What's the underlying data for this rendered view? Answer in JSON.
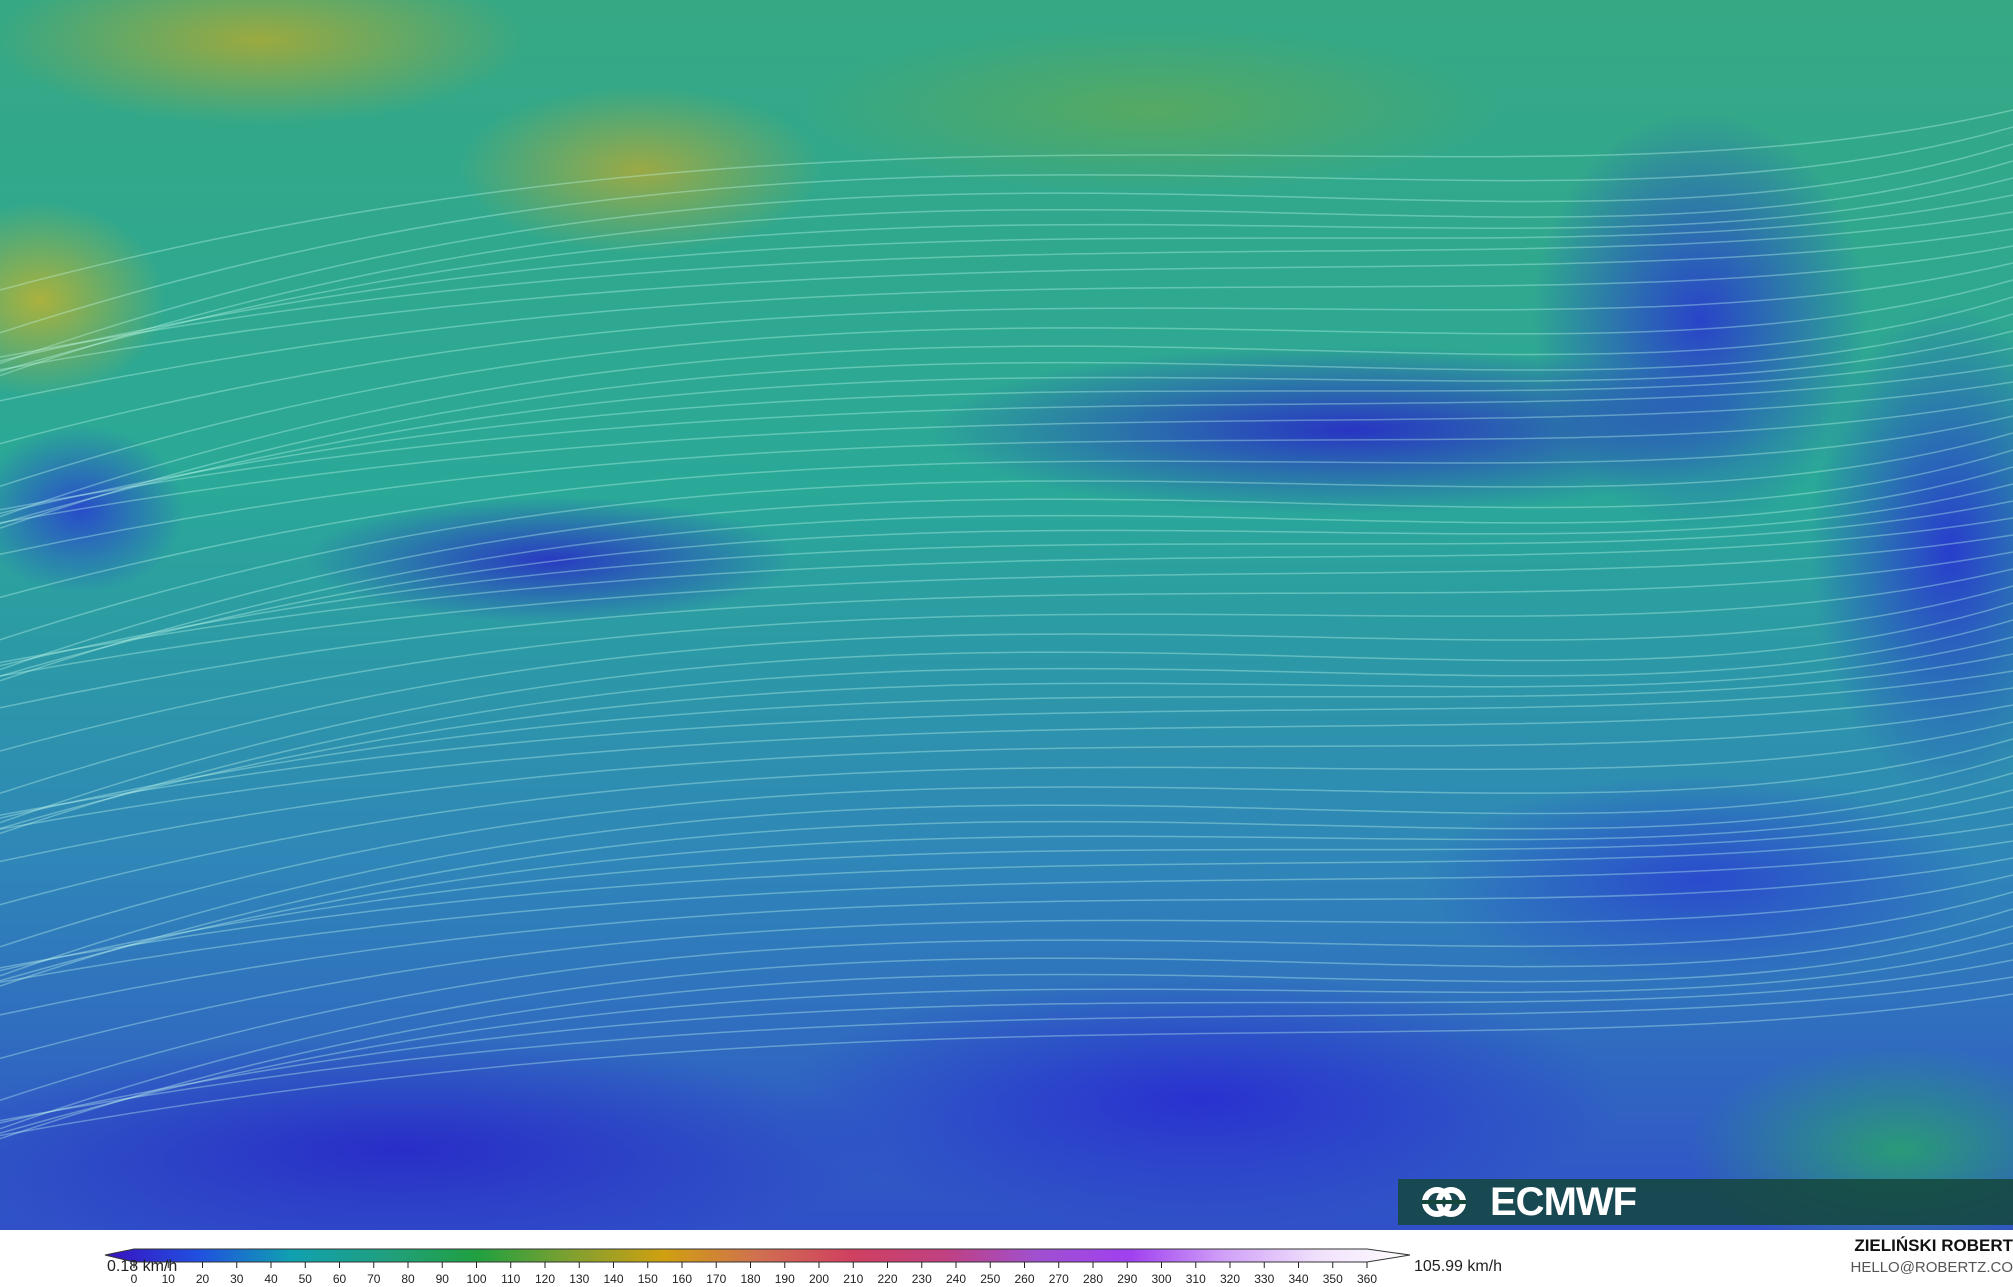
{
  "map": {
    "variable_hint": "wind speed streamlines"
  },
  "colorbar": {
    "min_label": "0.18 km/h",
    "max_label": "105.99 km/h",
    "ticks": [
      "0",
      "10",
      "20",
      "30",
      "40",
      "50",
      "60",
      "70",
      "80",
      "90",
      "100",
      "110",
      "120",
      "130",
      "140",
      "150",
      "160",
      "170",
      "180",
      "190",
      "200",
      "210",
      "220",
      "230",
      "240",
      "250",
      "260",
      "270",
      "280",
      "290",
      "300",
      "310",
      "320",
      "330",
      "340",
      "350",
      "360"
    ],
    "colors": [
      "#3a10c0",
      "#2050e0",
      "#10a0b0",
      "#20a080",
      "#20a040",
      "#80a030",
      "#d0a010",
      "#d07050",
      "#d04060",
      "#c04080",
      "#a050d0",
      "#a040f0",
      "#d0a0f8",
      "#f0e0fc",
      "#ffffff"
    ]
  },
  "logo": {
    "text": "ECMWF"
  },
  "credits": {
    "author": "ZIELIŃSKI ROBERT",
    "email": "HELLO@ROBERTZ.CO"
  }
}
